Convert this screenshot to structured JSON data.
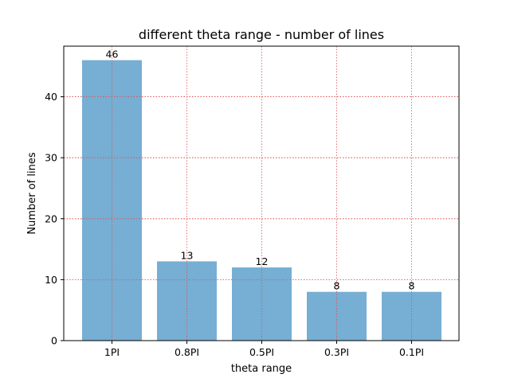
{
  "chart_data": {
    "type": "bar",
    "title": "different theta range - number of lines",
    "xlabel": "theta range",
    "ylabel": "Number of lines",
    "categories": [
      "1PI",
      "0.8PI",
      "0.5PI",
      "0.3PI",
      "0.1PI"
    ],
    "values": [
      46,
      13,
      12,
      8,
      8
    ],
    "ylim": [
      0,
      48.3
    ],
    "yticks": [
      0,
      10,
      20,
      30,
      40
    ],
    "grid": true,
    "grid_color": "#e05050",
    "bar_color": "#77aed3"
  }
}
